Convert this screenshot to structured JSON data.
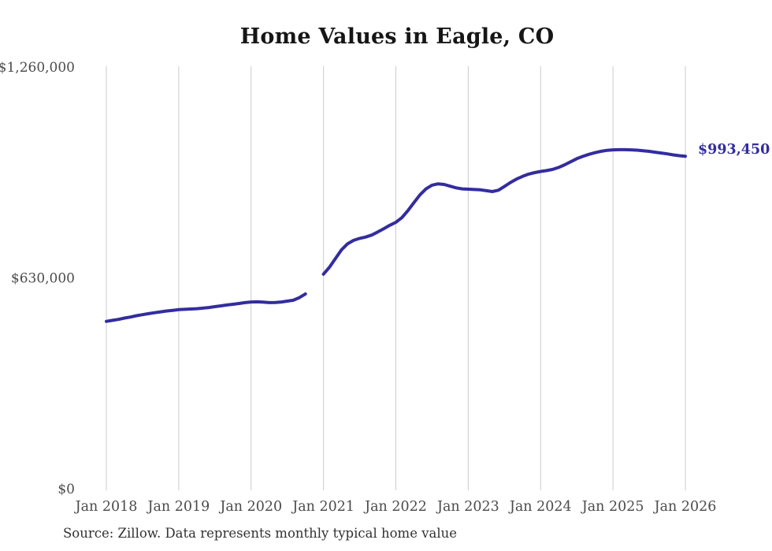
{
  "title": "Home Values in Eagle, CO",
  "end_label": "$993,450",
  "source_note": "Source: Zillow. Data represents monthly typical home value",
  "colors": {
    "line": "#332d9e",
    "grid": "#cbcbcb",
    "axis_text": "#4b4b4b",
    "title_text": "#161616",
    "source_text": "#323232",
    "end_label_text": "#332d9e",
    "background": "#ffffff"
  },
  "chart_data": {
    "type": "line",
    "title": "Home Values in Eagle, CO",
    "xlabel": "",
    "ylabel": "",
    "ylim": [
      0,
      1260000
    ],
    "grid": "vertical-only",
    "legend": "none",
    "final_value": 993450,
    "final_value_label": "$993,450",
    "y_ticks": [
      {
        "value": 0,
        "label": "$0"
      },
      {
        "value": 630000,
        "label": "$630,000"
      },
      {
        "value": 1260000,
        "label": "$1,260,000"
      }
    ],
    "x_ticks": [
      "Jan 2018",
      "Jan 2019",
      "Jan 2020",
      "Jan 2021",
      "Jan 2022",
      "Jan 2023",
      "Jan 2024",
      "Jan 2025",
      "Jan 2026"
    ],
    "x": [
      "2018-01",
      "2018-02",
      "2018-03",
      "2018-04",
      "2018-05",
      "2018-06",
      "2018-07",
      "2018-08",
      "2018-09",
      "2018-10",
      "2018-11",
      "2018-12",
      "2019-01",
      "2019-02",
      "2019-03",
      "2019-04",
      "2019-05",
      "2019-06",
      "2019-07",
      "2019-08",
      "2019-09",
      "2019-10",
      "2019-11",
      "2019-12",
      "2020-01",
      "2020-02",
      "2020-03",
      "2020-04",
      "2020-05",
      "2020-06",
      "2020-07",
      "2020-08",
      "2020-09",
      "2020-10",
      "2020-11",
      "2020-12",
      "2021-01",
      "2021-02",
      "2021-03",
      "2021-04",
      "2021-05",
      "2021-06",
      "2021-07",
      "2021-08",
      "2021-09",
      "2021-10",
      "2021-11",
      "2021-12",
      "2022-01",
      "2022-02",
      "2022-03",
      "2022-04",
      "2022-05",
      "2022-06",
      "2022-07",
      "2022-08",
      "2022-09",
      "2022-10",
      "2022-11",
      "2022-12",
      "2023-01",
      "2023-02",
      "2023-03",
      "2023-04",
      "2023-05",
      "2023-06",
      "2023-07",
      "2023-08",
      "2023-09",
      "2023-10",
      "2023-11",
      "2023-12",
      "2024-01",
      "2024-02",
      "2024-03",
      "2024-04",
      "2024-05",
      "2024-06",
      "2024-07",
      "2024-08",
      "2024-09",
      "2024-10",
      "2024-11",
      "2024-12",
      "2025-01",
      "2025-02",
      "2025-03",
      "2025-04",
      "2025-05",
      "2025-06",
      "2025-07",
      "2025-08",
      "2025-09",
      "2025-10",
      "2025-11",
      "2025-12",
      "2026-01"
    ],
    "series": [
      {
        "name": "Monthly typical home value",
        "color": "#332d9e",
        "values": [
          500000,
          503000,
          506000,
          510000,
          513000,
          517000,
          520000,
          523000,
          526000,
          528500,
          531000,
          533000,
          535000,
          536000,
          537000,
          538000,
          539500,
          541500,
          544000,
          546500,
          549000,
          551000,
          553500,
          556000,
          558000,
          558500,
          557500,
          556000,
          556500,
          558000,
          560500,
          563000,
          571000,
          582000,
          null,
          null,
          641000,
          662000,
          688000,
          714000,
          732000,
          742000,
          748000,
          752000,
          758000,
          767000,
          777000,
          787000,
          796000,
          810000,
          831000,
          855000,
          878000,
          896000,
          907000,
          911000,
          909000,
          904000,
          899000,
          896000,
          895000,
          894000,
          893000,
          890500,
          888000,
          892000,
          903000,
          915000,
          925000,
          933000,
          940000,
          944500,
          948000,
          950500,
          954000,
          960000,
          968000,
          977000,
          986000,
          993000,
          999000,
          1004000,
          1008000,
          1011000,
          1012500,
          1013000,
          1013000,
          1012500,
          1011500,
          1010000,
          1008000,
          1005500,
          1003000,
          1000500,
          997500,
          995000,
          993450
        ]
      }
    ]
  }
}
